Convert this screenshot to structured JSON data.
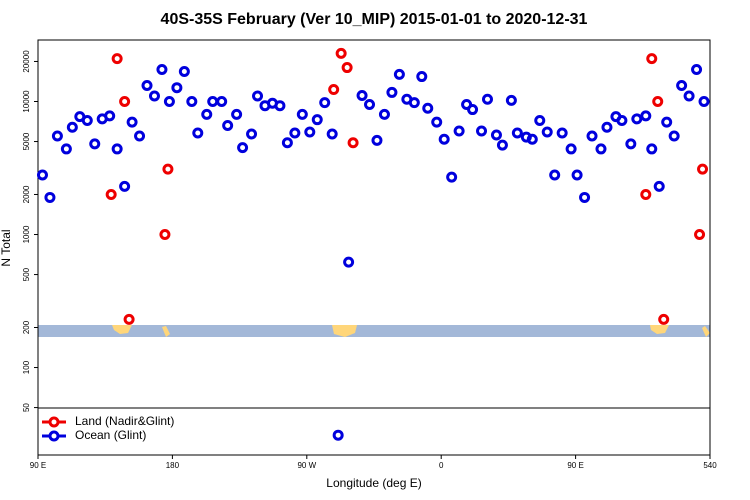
{
  "chart_data": {
    "type": "scatter",
    "title": "40S-35S February (Ver 10_MIP)   2015-01-01 to 2020-12-31",
    "xlabel": "Longitude (deg E)",
    "ylabel": "N Total",
    "xlim": [
      90,
      540
    ],
    "ylim": [
      22,
      29000
    ],
    "log_y": true,
    "legend": "lower left",
    "xticks": [
      {
        "value": 90,
        "label": "90 E"
      },
      180,
      {
        "value": 270,
        "label": "90 W"
      },
      {
        "value": 360,
        "label": "0"
      },
      {
        "value": 450,
        "label": "90 E"
      },
      540
    ],
    "yticks": [
      50,
      100,
      200,
      500,
      1000,
      2000,
      5000,
      10000,
      20000
    ],
    "series": [
      {
        "name": "Land (Nadir&Glint)",
        "color": "#ee0000",
        "x": [
          143,
          148,
          139,
          151,
          175,
          177,
          293,
          297,
          288,
          301,
          501,
          505,
          497,
          509,
          533,
          535
        ],
        "values": [
          21000,
          10000,
          2000,
          230,
          1000,
          3100,
          23000,
          18000,
          12300,
          4900,
          21000,
          10000,
          2000,
          230,
          1000,
          3100
        ]
      },
      {
        "name": "Ocean (Glint)",
        "color": "#0000dd",
        "x": [
          93,
          98,
          103,
          109,
          113,
          118,
          123,
          128,
          133,
          138,
          143,
          148,
          153,
          158,
          163,
          168,
          173,
          178,
          183,
          188,
          193,
          197,
          203,
          207,
          213,
          217,
          223,
          227,
          233,
          237,
          242,
          247,
          252,
          257,
          262,
          267,
          272,
          277,
          282,
          287,
          298,
          307,
          312,
          317,
          322,
          327,
          332,
          337,
          342,
          347,
          351,
          357,
          362,
          367,
          372,
          377,
          381,
          387,
          391,
          397,
          401,
          407,
          411,
          417,
          421,
          426,
          431,
          436,
          441,
          447,
          451,
          456,
          461,
          467,
          471,
          477,
          481,
          487,
          491,
          497,
          501,
          506,
          511,
          516,
          521,
          526,
          531,
          536,
          291
        ],
        "values": [
          2800,
          1900,
          5500,
          4400,
          6400,
          7700,
          7200,
          4800,
          7400,
          7800,
          4400,
          2300,
          7000,
          5500,
          13200,
          11000,
          17400,
          10000,
          12700,
          16800,
          10000,
          5800,
          8000,
          10000,
          10000,
          6600,
          8000,
          4500,
          5700,
          11000,
          9300,
          9700,
          9300,
          4900,
          5800,
          8000,
          5900,
          7300,
          9800,
          5700,
          620,
          11100,
          9500,
          5100,
          8000,
          11700,
          16000,
          10400,
          9800,
          15400,
          8900,
          7000,
          5200,
          2700,
          6000,
          9500,
          8700,
          6000,
          10400,
          5600,
          4700,
          10200,
          5800,
          5400,
          5200,
          7200,
          5900,
          2800,
          5800,
          4400,
          2800,
          1900,
          5500,
          4400,
          6400,
          7700,
          7200,
          4800,
          7400,
          7800,
          4400,
          2300,
          7000,
          5500,
          13200,
          11000,
          17400,
          10000,
          31
        ]
      }
    ]
  }
}
